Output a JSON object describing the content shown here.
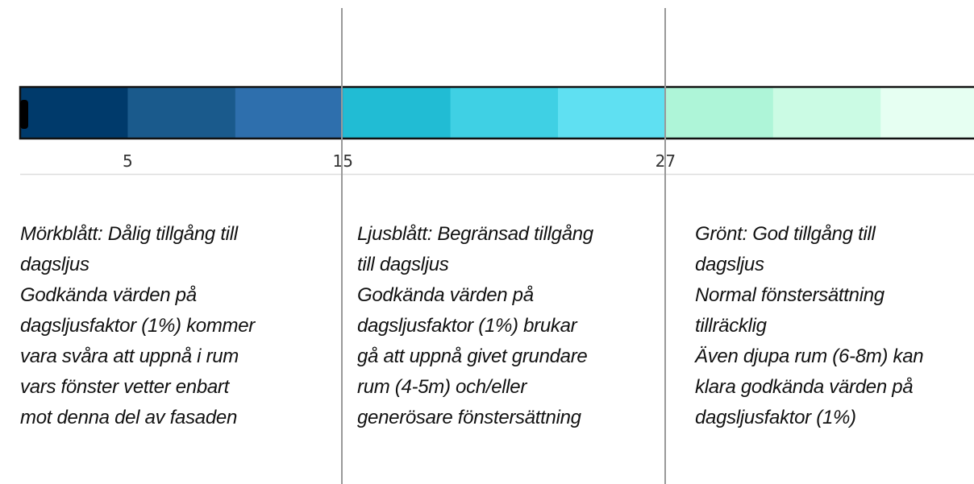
{
  "scale": {
    "colors": [
      "#003a6b",
      "#1a5a8c",
      "#2e6fad",
      "#21bcd4",
      "#3fd0e4",
      "#5fe0f2",
      "#aef5d8",
      "#cbfbe4",
      "#e6fff2"
    ],
    "ticks": [
      5,
      15,
      27
    ]
  },
  "columns": [
    {
      "lines": [
        "Mörkblått: Dålig tillgång till",
        "dagsljus",
        "Godkända värden på",
        "dagsljusfaktor (1%) kommer",
        "vara svåra att uppnå i rum",
        "vars fönster vetter enbart",
        "mot denna del av fasaden"
      ]
    },
    {
      "lines": [
        "Ljusblått: Begränsad tillgång",
        "till dagsljus",
        "Godkända värden på",
        "dagsljusfaktor (1%) brukar",
        "gå att uppnå givet grundare",
        "rum (4-5m) och/eller",
        "generösare fönstersättning"
      ]
    },
    {
      "lines": [
        "Grönt: God tillgång till",
        "dagsljus",
        "Normal fönstersättning",
        "tillräcklig",
        "Även djupa rum (6-8m) kan",
        "klara godkända värden på",
        "dagsljusfaktor (1%)"
      ]
    }
  ]
}
